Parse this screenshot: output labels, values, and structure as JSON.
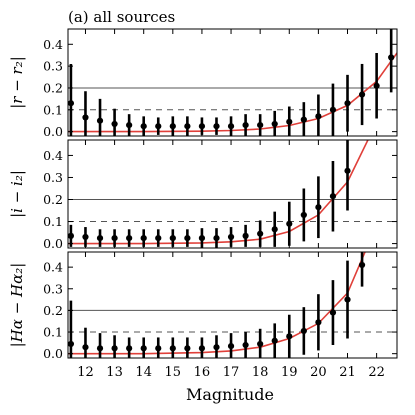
{
  "chart_data": {
    "type": "scatter",
    "title": "(a) all sources",
    "xlabel": "Magnitude",
    "xlim": [
      11.4,
      22.7
    ],
    "xticks": [
      12,
      13,
      14,
      15,
      16,
      17,
      18,
      19,
      20,
      21,
      22
    ],
    "colors": {
      "curve": "#e0403a",
      "points": "#000000",
      "reference_lines": "#555555"
    },
    "panels": [
      {
        "ylabel": "|r − r₂|",
        "ylim": [
          -0.02,
          0.47
        ],
        "yticks": [
          0.0,
          0.1,
          0.2,
          0.3,
          0.4
        ],
        "solid_line": 0.2,
        "dashed_line": 0.1,
        "x": [
          11.5,
          12,
          12.5,
          13,
          13.5,
          14,
          14.5,
          15,
          15.5,
          16,
          16.5,
          17,
          17.5,
          18,
          18.5,
          19,
          19.5,
          20,
          20.5,
          21,
          21.5,
          22,
          22.5
        ],
        "y": [
          0.13,
          0.065,
          0.05,
          0.035,
          0.03,
          0.025,
          0.025,
          0.025,
          0.025,
          0.025,
          0.025,
          0.025,
          0.03,
          0.03,
          0.035,
          0.045,
          0.055,
          0.07,
          0.1,
          0.13,
          0.17,
          0.21,
          0.34
        ],
        "err": [
          0.18,
          0.12,
          0.1,
          0.07,
          0.05,
          0.045,
          0.04,
          0.045,
          0.045,
          0.04,
          0.04,
          0.045,
          0.05,
          0.05,
          0.06,
          0.07,
          0.08,
          0.1,
          0.12,
          0.13,
          0.14,
          0.15,
          0.16
        ],
        "curve": [
          [
            11.4,
            0.0
          ],
          [
            14,
            0.0
          ],
          [
            16,
            0.002
          ],
          [
            17,
            0.005
          ],
          [
            18,
            0.012
          ],
          [
            19,
            0.028
          ],
          [
            20,
            0.06
          ],
          [
            21,
            0.12
          ],
          [
            22,
            0.23
          ],
          [
            22.7,
            0.36
          ]
        ]
      },
      {
        "ylabel": "|i − i₂|",
        "ylim": [
          -0.02,
          0.47
        ],
        "yticks": [
          0.0,
          0.1,
          0.2,
          0.3,
          0.4
        ],
        "solid_line": 0.2,
        "dashed_line": 0.1,
        "x": [
          11.5,
          12,
          12.5,
          13,
          13.5,
          14,
          14.5,
          15,
          15.5,
          16,
          16.5,
          17,
          17.5,
          18,
          18.5,
          19,
          19.5,
          20,
          20.5,
          21
        ],
        "y": [
          0.035,
          0.03,
          0.025,
          0.025,
          0.025,
          0.025,
          0.025,
          0.025,
          0.025,
          0.025,
          0.025,
          0.03,
          0.035,
          0.045,
          0.065,
          0.09,
          0.13,
          0.165,
          0.215,
          0.33
        ],
        "err": [
          0.05,
          0.045,
          0.04,
          0.04,
          0.04,
          0.04,
          0.04,
          0.04,
          0.04,
          0.045,
          0.045,
          0.045,
          0.05,
          0.06,
          0.08,
          0.1,
          0.12,
          0.14,
          0.16,
          0.18
        ],
        "curve": [
          [
            11.4,
            0.0
          ],
          [
            14,
            0.0
          ],
          [
            16,
            0.003
          ],
          [
            17,
            0.008
          ],
          [
            18,
            0.02
          ],
          [
            19,
            0.055
          ],
          [
            20,
            0.13
          ],
          [
            21,
            0.28
          ],
          [
            21.7,
            0.47
          ]
        ]
      },
      {
        "ylabel": "|Hα − Hα₂|",
        "ylim": [
          -0.02,
          0.47
        ],
        "yticks": [
          0.0,
          0.1,
          0.2,
          0.3,
          0.4
        ],
        "solid_line": 0.2,
        "dashed_line": 0.1,
        "x": [
          11.5,
          12,
          12.5,
          13,
          13.5,
          14,
          14.5,
          15,
          15.5,
          16,
          16.5,
          17,
          17.5,
          18,
          18.5,
          19,
          19.5,
          20,
          20.5,
          21,
          21.5
        ],
        "y": [
          0.045,
          0.03,
          0.025,
          0.025,
          0.025,
          0.025,
          0.025,
          0.025,
          0.025,
          0.025,
          0.03,
          0.035,
          0.04,
          0.045,
          0.06,
          0.08,
          0.105,
          0.145,
          0.19,
          0.25,
          0.41
        ],
        "err": [
          0.2,
          0.09,
          0.07,
          0.06,
          0.05,
          0.05,
          0.05,
          0.05,
          0.05,
          0.05,
          0.055,
          0.06,
          0.06,
          0.07,
          0.08,
          0.1,
          0.11,
          0.13,
          0.15,
          0.18,
          0.1
        ],
        "curve": [
          [
            11.4,
            0.0
          ],
          [
            14,
            0.0
          ],
          [
            16,
            0.005
          ],
          [
            17,
            0.013
          ],
          [
            18,
            0.03
          ],
          [
            19,
            0.07
          ],
          [
            20,
            0.14
          ],
          [
            21,
            0.28
          ],
          [
            21.6,
            0.47
          ]
        ]
      }
    ]
  }
}
